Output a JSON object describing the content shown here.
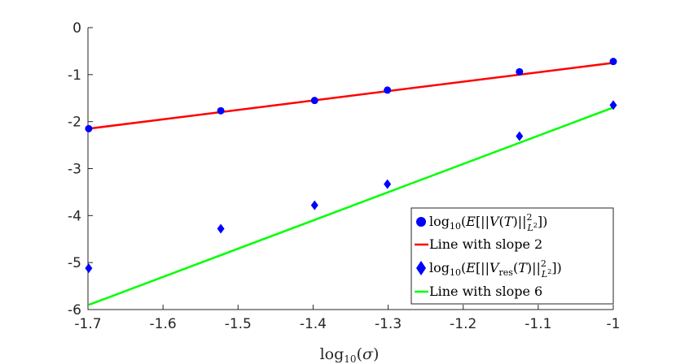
{
  "chart_data": {
    "type": "scatter",
    "title": "",
    "xlabel": "log10(σ)",
    "ylabel": "",
    "xlim": [
      -1.7,
      -1.0
    ],
    "ylim": [
      -6,
      0
    ],
    "grid": false,
    "x_ticks": [
      -1.7,
      -1.6,
      -1.5,
      -1.4,
      -1.3,
      -1.2,
      -1.1,
      -1.0
    ],
    "x_tick_labels": [
      "-1.7",
      "-1.6",
      "-1.5",
      "-1.4",
      "-1.3",
      "-1.2",
      "-1.1",
      "-1"
    ],
    "y_ticks": [
      0,
      -1,
      -2,
      -3,
      -4,
      -5,
      -6
    ],
    "y_tick_labels": [
      "0",
      "-1",
      "-2",
      "-3",
      "-4",
      "-5",
      "-6"
    ],
    "legend_position": "bottom-right",
    "series": [
      {
        "name": "log10(E[||V(T)||²_{L²}])",
        "kind": "markers",
        "marker": "circle",
        "color": "#0000ff",
        "x": [
          -1.699,
          -1.523,
          -1.398,
          -1.301,
          -1.125,
          -1.0
        ],
        "y": [
          -2.15,
          -1.77,
          -1.55,
          -1.33,
          -0.94,
          -0.72
        ]
      },
      {
        "name": "Line with slope 2",
        "kind": "line",
        "color": "#ff0000",
        "x": [
          -1.699,
          -1.0
        ],
        "y": [
          -2.15,
          -0.75
        ]
      },
      {
        "name": "log10(E[||V_res(T)||²_{L²}])",
        "kind": "markers",
        "marker": "diamond",
        "color": "#0000ff",
        "x": [
          -1.699,
          -1.523,
          -1.398,
          -1.301,
          -1.125,
          -1.0
        ],
        "y": [
          -5.12,
          -4.28,
          -3.78,
          -3.33,
          -2.31,
          -1.65
        ]
      },
      {
        "name": "Line with slope 6",
        "kind": "line",
        "color": "#00ff00",
        "x": [
          -1.699,
          -1.0
        ],
        "y": [
          -5.9,
          -1.7
        ]
      }
    ]
  }
}
